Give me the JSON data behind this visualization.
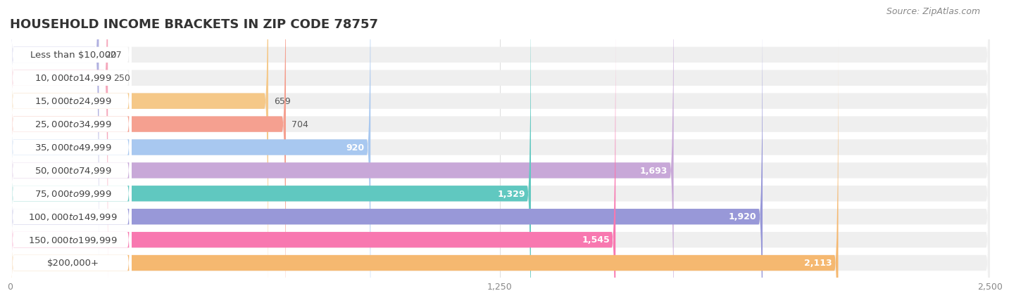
{
  "title": "HOUSEHOLD INCOME BRACKETS IN ZIP CODE 78757",
  "source": "Source: ZipAtlas.com",
  "categories": [
    "Less than $10,000",
    "$10,000 to $14,999",
    "$15,000 to $24,999",
    "$25,000 to $34,999",
    "$35,000 to $49,999",
    "$50,000 to $74,999",
    "$75,000 to $99,999",
    "$100,000 to $149,999",
    "$150,000 to $199,999",
    "$200,000+"
  ],
  "values": [
    227,
    250,
    659,
    704,
    920,
    1693,
    1329,
    1920,
    1545,
    2113
  ],
  "bar_colors": [
    "#b0b0e0",
    "#f5a8bc",
    "#f5c888",
    "#f5a090",
    "#a8c8f0",
    "#c8a8d8",
    "#60c8c0",
    "#9898d8",
    "#f878b0",
    "#f5b870"
  ],
  "bar_bg_color": "#efefef",
  "label_bg_color": "#ffffff",
  "background_color": "#ffffff",
  "row_bg_colors": [
    "#f8f8f8",
    "#f0f0f0"
  ],
  "xlim": [
    0,
    2500
  ],
  "xticks": [
    0,
    1250,
    2500
  ],
  "title_fontsize": 13,
  "label_fontsize": 9.5,
  "value_fontsize": 9,
  "source_fontsize": 9,
  "value_inside_threshold": 900
}
